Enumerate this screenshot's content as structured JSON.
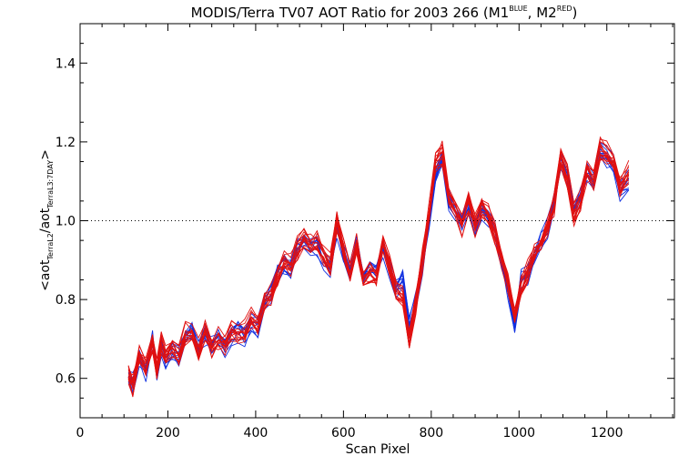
{
  "chart_data": {
    "type": "line",
    "title": {
      "main": "MODIS/Terra TV07 AOT Ratio for 2003 266 (M1",
      "sup1": "BLUE",
      "mid": ", M2",
      "sup2": "RED",
      "end": ")"
    },
    "xlabel": "Scan Pixel",
    "ylabel": {
      "open": "<aot",
      "sub1": "TerraL2",
      "slash": "/aot",
      "sub2": "TerraL3:7DAY",
      "close": ">"
    },
    "xlim": [
      0,
      1354
    ],
    "ylim": [
      0.5,
      1.5
    ],
    "x_ticks": [
      "0",
      "200",
      "400",
      "600",
      "800",
      "1000",
      "1200"
    ],
    "y_ticks": [
      "0.6",
      "0.8",
      "1.0",
      "1.2",
      "1.4"
    ],
    "reference_line": {
      "y": 1.0,
      "style": "dotted"
    },
    "grid": false,
    "colors": {
      "blue": "#1030e0",
      "red": "#e01010"
    },
    "series": [
      {
        "color_key": "blue",
        "x": [
          110,
          120,
          135,
          150,
          165,
          175,
          185,
          195,
          210,
          225,
          240,
          255,
          270,
          285,
          300,
          315,
          330,
          345,
          360,
          375,
          390,
          405,
          420,
          435,
          450,
          465,
          480,
          495,
          510,
          525,
          540,
          555,
          570,
          585,
          600,
          615,
          630,
          645,
          660,
          675,
          690,
          705,
          720,
          735,
          750,
          765,
          780,
          795,
          810,
          825,
          840,
          855,
          870,
          885,
          900,
          915,
          930,
          945,
          960,
          975,
          990,
          1005,
          1020,
          1035,
          1050,
          1065,
          1080,
          1095,
          1110,
          1125,
          1140,
          1155,
          1170,
          1185,
          1200,
          1215,
          1230,
          1250
        ],
        "y": [
          0.6,
          0.59,
          0.65,
          0.62,
          0.7,
          0.61,
          0.68,
          0.65,
          0.67,
          0.66,
          0.7,
          0.72,
          0.68,
          0.71,
          0.69,
          0.71,
          0.68,
          0.71,
          0.72,
          0.71,
          0.74,
          0.73,
          0.79,
          0.82,
          0.87,
          0.89,
          0.88,
          0.94,
          0.95,
          0.93,
          0.94,
          0.9,
          0.88,
          0.98,
          0.92,
          0.87,
          0.95,
          0.86,
          0.88,
          0.87,
          0.93,
          0.88,
          0.83,
          0.85,
          0.73,
          0.8,
          0.88,
          1.0,
          1.12,
          1.16,
          1.05,
          1.02,
          1.0,
          1.04,
          0.98,
          1.03,
          1.01,
          0.98,
          0.9,
          0.82,
          0.73,
          0.85,
          0.86,
          0.91,
          0.95,
          0.98,
          1.05,
          1.15,
          1.12,
          1.03,
          1.06,
          1.12,
          1.1,
          1.17,
          1.16,
          1.14,
          1.08,
          1.1
        ]
      },
      {
        "color_key": "red",
        "x": [
          110,
          120,
          135,
          150,
          165,
          175,
          185,
          195,
          210,
          225,
          240,
          255,
          270,
          285,
          300,
          315,
          330,
          345,
          360,
          375,
          390,
          405,
          420,
          435,
          450,
          465,
          480,
          495,
          510,
          525,
          540,
          555,
          570,
          585,
          600,
          615,
          630,
          645,
          660,
          675,
          690,
          705,
          720,
          735,
          750,
          765,
          780,
          795,
          810,
          825,
          840,
          855,
          870,
          885,
          900,
          915,
          930,
          945,
          960,
          975,
          990,
          1005,
          1020,
          1035,
          1050,
          1065,
          1080,
          1095,
          1110,
          1125,
          1140,
          1155,
          1170,
          1185,
          1200,
          1215,
          1230,
          1250
        ],
        "y": [
          0.61,
          0.58,
          0.66,
          0.63,
          0.69,
          0.62,
          0.69,
          0.66,
          0.68,
          0.66,
          0.71,
          0.71,
          0.67,
          0.72,
          0.68,
          0.7,
          0.69,
          0.72,
          0.71,
          0.72,
          0.75,
          0.74,
          0.8,
          0.81,
          0.86,
          0.9,
          0.89,
          0.93,
          0.96,
          0.94,
          0.95,
          0.91,
          0.89,
          1.0,
          0.93,
          0.86,
          0.94,
          0.85,
          0.87,
          0.86,
          0.95,
          0.89,
          0.82,
          0.81,
          0.7,
          0.79,
          0.9,
          1.02,
          1.15,
          1.17,
          1.06,
          1.03,
          0.99,
          1.05,
          0.99,
          1.04,
          1.02,
          0.97,
          0.91,
          0.84,
          0.76,
          0.83,
          0.87,
          0.92,
          0.94,
          0.99,
          1.04,
          1.16,
          1.11,
          1.02,
          1.05,
          1.13,
          1.11,
          1.18,
          1.17,
          1.15,
          1.09,
          1.12
        ]
      }
    ]
  }
}
